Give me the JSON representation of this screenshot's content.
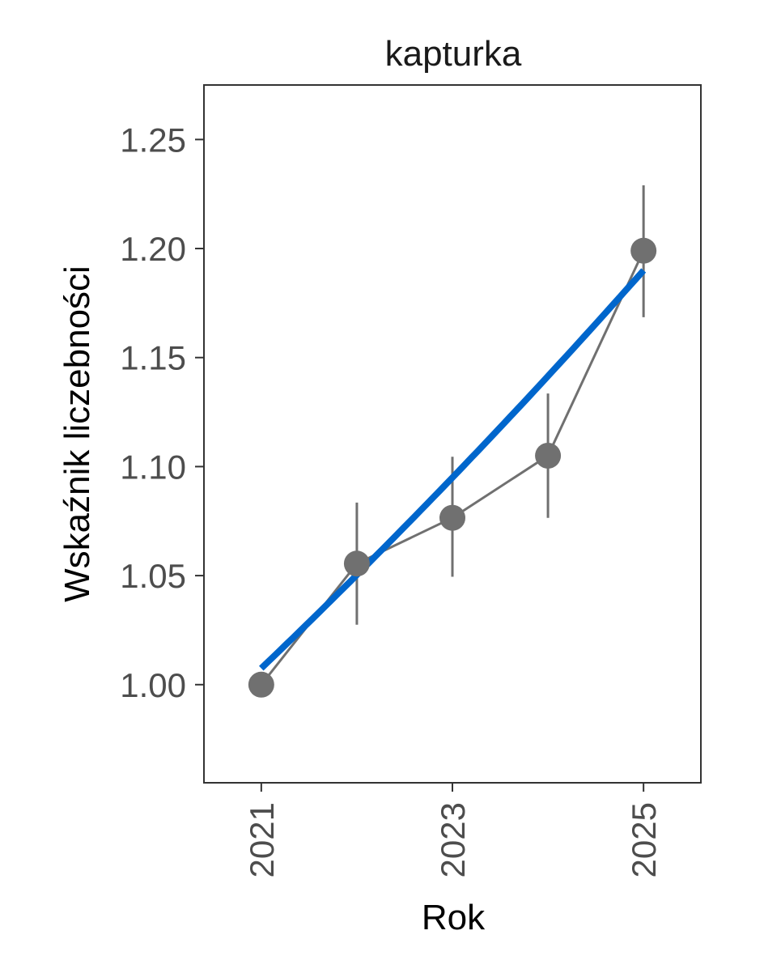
{
  "chart_data": {
    "type": "line",
    "title": "kapturka",
    "xlabel": "Rok",
    "ylabel": "Wskaźnik liczebności",
    "x": [
      2021,
      2022,
      2023,
      2024,
      2025
    ],
    "x_ticks": [
      "2021",
      "2023",
      "2025"
    ],
    "x_ticks_values": [
      2021,
      2023,
      2025
    ],
    "xlim": [
      2020.4,
      2025.6
    ],
    "y_ticks": [
      "1.00",
      "1.05",
      "1.10",
      "1.15",
      "1.20",
      "1.25"
    ],
    "y_ticks_values": [
      1.0,
      1.05,
      1.1,
      1.15,
      1.2,
      1.25
    ],
    "ylim": [
      0.955,
      1.275
    ],
    "grid": false,
    "series": [
      {
        "values": [
          1.0,
          1.0555,
          1.0765,
          1.105,
          1.199
        ],
        "error_low": [
          1.0,
          1.0275,
          1.0495,
          1.0765,
          1.1685
        ],
        "error_high": [
          1.0,
          1.0835,
          1.1045,
          1.1335,
          1.229
        ],
        "color": "#707070"
      }
    ],
    "trend": {
      "x": [
        2021,
        2025
      ],
      "start": 1.0075,
      "end": 1.19,
      "color": "#0066cc"
    }
  }
}
